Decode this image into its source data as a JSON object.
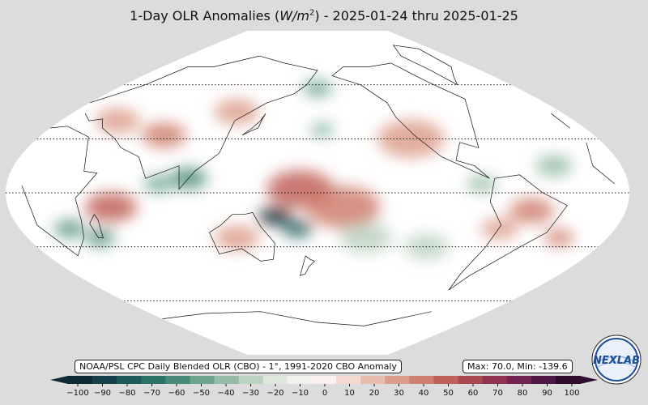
{
  "title": {
    "prefix": "1-Day OLR Anomalies (",
    "unit_base": "W/m",
    "unit_exp": "2",
    "suffix": ") - 2025-01-24 thru 2025-01-25"
  },
  "source_label": "NOAA/PSL CPC Daily Blended OLR (CBO) - 1°, 1991-2020 CBO Anomaly",
  "stats_label": "Max: 70.0,  Min: -139.6",
  "colorbar": {
    "min": -100,
    "max": 100,
    "ticks": [
      "−100",
      "−90",
      "−80",
      "−70",
      "−60",
      "−50",
      "−40",
      "−30",
      "−20",
      "−10",
      "0",
      "10",
      "20",
      "30",
      "40",
      "50",
      "60",
      "70",
      "80",
      "90",
      "100"
    ],
    "colors": [
      "#0f2b33",
      "#17414a",
      "#1f5a5a",
      "#2b7366",
      "#4a8a78",
      "#6ea38e",
      "#96bba6",
      "#bcd2c1",
      "#dde7dc",
      "#f1f2ee",
      "#fbf1ee",
      "#f3d9d1",
      "#e8bcae",
      "#dc9d8c",
      "#cf7f6e",
      "#bf6159",
      "#a94a52",
      "#8f3350",
      "#732451",
      "#4f1744",
      "#2e0d2e"
    ]
  },
  "map": {
    "background": "#ffffff",
    "anomaly_patches": [
      {
        "lon": 105,
        "lat": 8,
        "r": 10,
        "value": -60
      },
      {
        "lon": 88,
        "lat": 5,
        "r": 8,
        "value": -55
      },
      {
        "lon": 60,
        "lat": -8,
        "r": 14,
        "value": 50
      },
      {
        "lon": 155,
        "lat": -13,
        "r": 9,
        "value": -100
      },
      {
        "lon": 168,
        "lat": -20,
        "r": 8,
        "value": -80
      },
      {
        "lon": 170,
        "lat": 2,
        "r": 18,
        "value": 45
      },
      {
        "lon": 195,
        "lat": -8,
        "r": 20,
        "value": 35
      },
      {
        "lon": 240,
        "lat": 30,
        "r": 18,
        "value": 30
      },
      {
        "lon": 183,
        "lat": 35,
        "r": 6,
        "value": -55
      },
      {
        "lon": 180,
        "lat": 58,
        "r": 8,
        "value": -50
      },
      {
        "lon": 80,
        "lat": 32,
        "r": 12,
        "value": 35
      },
      {
        "lon": 40,
        "lat": 40,
        "r": 12,
        "value": 30
      },
      {
        "lon": 30,
        "lat": -20,
        "r": 8,
        "value": -65
      },
      {
        "lon": 45,
        "lat": -25,
        "r": 8,
        "value": -60
      },
      {
        "lon": 305,
        "lat": -10,
        "r": 12,
        "value": 35
      },
      {
        "lon": 290,
        "lat": -20,
        "r": 10,
        "value": 30
      },
      {
        "lon": 330,
        "lat": -25,
        "r": 8,
        "value": 40
      },
      {
        "lon": 275,
        "lat": 5,
        "r": 8,
        "value": -40
      },
      {
        "lon": 210,
        "lat": -25,
        "r": 14,
        "value": -35
      },
      {
        "lon": 250,
        "lat": -30,
        "r": 12,
        "value": -30
      },
      {
        "lon": 130,
        "lat": -25,
        "r": 12,
        "value": 30
      },
      {
        "lon": 120,
        "lat": 45,
        "r": 12,
        "value": 25
      },
      {
        "lon": 320,
        "lat": 15,
        "r": 10,
        "value": -40
      }
    ]
  }
}
